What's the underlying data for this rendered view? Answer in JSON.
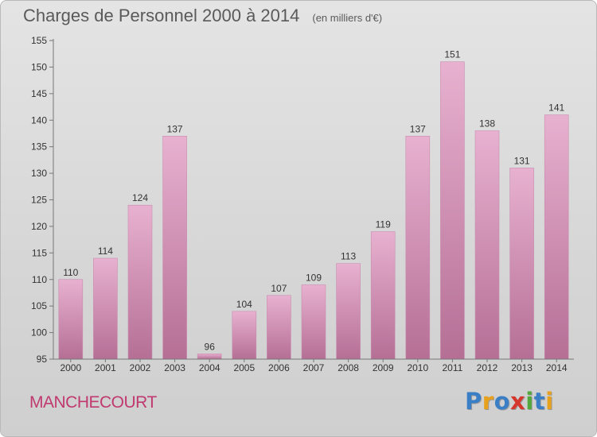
{
  "title": "Charges de Personnel 2000 à 2014",
  "subtitle": "(en milliers d'€)",
  "city": "MANCHECOURT",
  "logo": {
    "letters": [
      "P",
      "r",
      "o",
      "x",
      "i",
      "t",
      "i"
    ],
    "colors": [
      "#3a7fc5",
      "#e8a11c",
      "#3a7fc5",
      "#d6372c",
      "#53a83c",
      "#3a7fc5",
      "#e8a11c"
    ]
  },
  "colors": {
    "bar_top": "#e8b1d0",
    "bar_bottom": "#b56f95",
    "axis": "#777777",
    "grid": "#cfcfcf",
    "text": "#333333"
  },
  "chart_data": {
    "type": "bar",
    "title": "Charges de Personnel 2000 à 2014",
    "subtitle": "(en milliers d'€)",
    "categories": [
      "2000",
      "2001",
      "2002",
      "2003",
      "2004",
      "2005",
      "2006",
      "2007",
      "2008",
      "2009",
      "2010",
      "2011",
      "2012",
      "2013",
      "2014"
    ],
    "values": [
      110,
      114,
      124,
      137,
      96,
      104,
      107,
      109,
      113,
      119,
      137,
      151,
      138,
      131,
      141
    ],
    "ylim": [
      95,
      155
    ],
    "yticks": [
      95,
      100,
      105,
      110,
      115,
      120,
      125,
      130,
      135,
      140,
      145,
      150,
      155
    ],
    "grid": false
  }
}
